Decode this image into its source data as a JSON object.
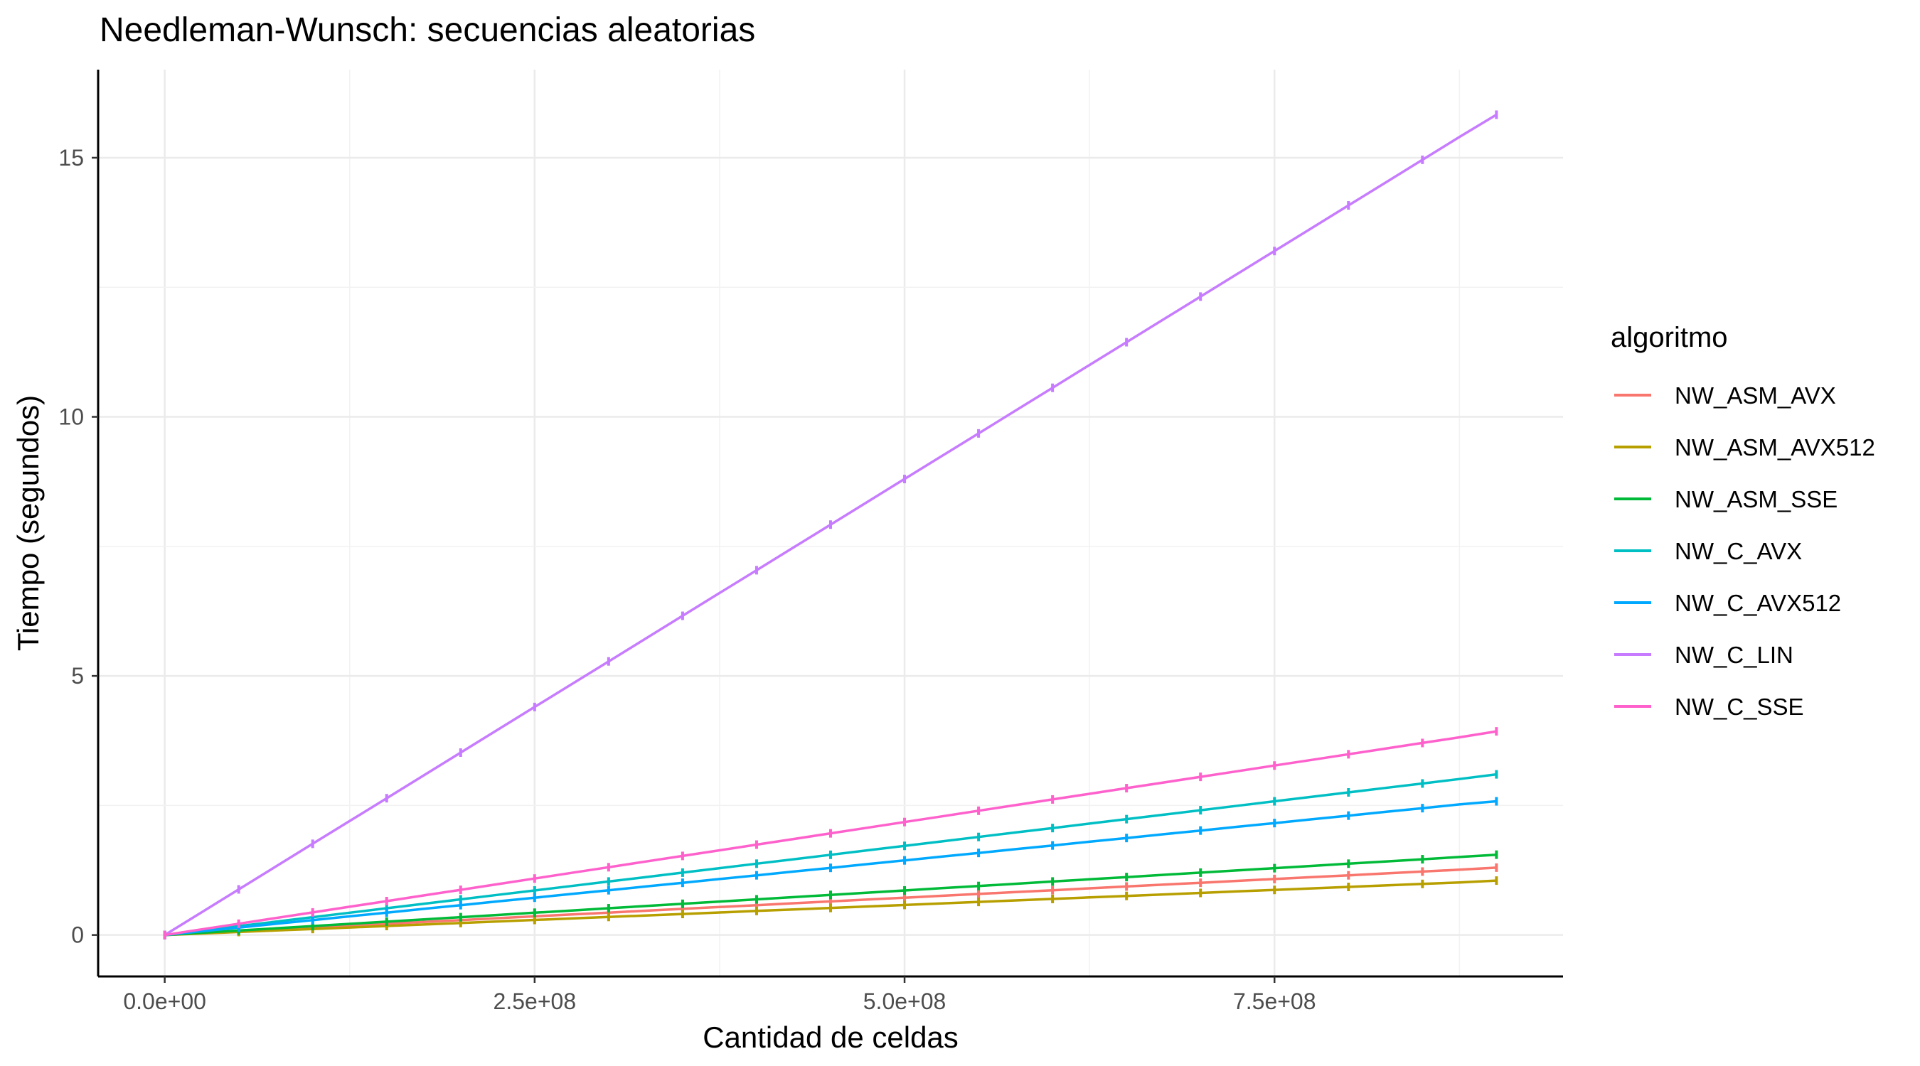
{
  "chart_data": {
    "type": "line",
    "title": "Needleman-Wunsch: secuencias aleatorias",
    "xlabel": "Cantidad de celdas",
    "ylabel": "Tiempo (segundos)",
    "xlim": [
      -45000000,
      945000000
    ],
    "ylim": [
      -0.8,
      16.7
    ],
    "x_ticks": [
      0,
      250000000,
      500000000,
      750000000
    ],
    "x_tick_labels": [
      "0.0e+00",
      "2.5e+08",
      "5.0e+08",
      "7.5e+08"
    ],
    "y_ticks": [
      0,
      5,
      10,
      15
    ],
    "y_tick_labels": [
      "0",
      "5",
      "10",
      "15"
    ],
    "grid": "major and minor, light grey",
    "legend": {
      "title": "algoritmo",
      "position": "right"
    },
    "x": [
      0,
      25000000,
      50000000,
      75000000,
      100000000,
      125000000,
      150000000,
      175000000,
      200000000,
      225000000,
      250000000,
      275000000,
      300000000,
      325000000,
      350000000,
      375000000,
      400000000,
      425000000,
      450000000,
      475000000,
      500000000,
      525000000,
      550000000,
      575000000,
      600000000,
      625000000,
      650000000,
      675000000,
      700000000,
      725000000,
      750000000,
      775000000,
      800000000,
      825000000,
      850000000,
      875000000,
      900000000
    ],
    "series": [
      {
        "name": "NW_ASM_AVX",
        "color": "#F8766D",
        "values": [
          0,
          0.036,
          0.072,
          0.108,
          0.144,
          0.18,
          0.216,
          0.252,
          0.288,
          0.324,
          0.36,
          0.396,
          0.432,
          0.468,
          0.504,
          0.54,
          0.576,
          0.612,
          0.648,
          0.684,
          0.72,
          0.756,
          0.792,
          0.828,
          0.864,
          0.9,
          0.936,
          0.972,
          1.008,
          1.044,
          1.08,
          1.116,
          1.152,
          1.188,
          1.224,
          1.26,
          1.3
        ]
      },
      {
        "name": "NW_ASM_AVX512",
        "color": "#B79F00",
        "values": [
          0,
          0.029,
          0.058,
          0.087,
          0.116,
          0.145,
          0.174,
          0.203,
          0.232,
          0.261,
          0.29,
          0.319,
          0.348,
          0.377,
          0.406,
          0.435,
          0.464,
          0.493,
          0.522,
          0.551,
          0.58,
          0.609,
          0.638,
          0.667,
          0.696,
          0.725,
          0.754,
          0.783,
          0.812,
          0.841,
          0.87,
          0.899,
          0.928,
          0.957,
          0.986,
          1.015,
          1.05
        ]
      },
      {
        "name": "NW_ASM_SSE",
        "color": "#00BA38",
        "values": [
          0,
          0.043,
          0.086,
          0.129,
          0.172,
          0.215,
          0.258,
          0.301,
          0.344,
          0.387,
          0.43,
          0.473,
          0.516,
          0.559,
          0.602,
          0.645,
          0.688,
          0.731,
          0.774,
          0.817,
          0.86,
          0.903,
          0.946,
          0.989,
          1.032,
          1.075,
          1.118,
          1.161,
          1.204,
          1.247,
          1.29,
          1.333,
          1.376,
          1.419,
          1.462,
          1.505,
          1.55
        ]
      },
      {
        "name": "NW_C_AVX",
        "color": "#00BFC4",
        "values": [
          0,
          0.086,
          0.172,
          0.258,
          0.344,
          0.43,
          0.516,
          0.602,
          0.688,
          0.774,
          0.86,
          0.946,
          1.032,
          1.118,
          1.204,
          1.29,
          1.376,
          1.462,
          1.548,
          1.634,
          1.72,
          1.806,
          1.892,
          1.978,
          2.064,
          2.15,
          2.236,
          2.322,
          2.408,
          2.494,
          2.58,
          2.666,
          2.752,
          2.838,
          2.924,
          3.01,
          3.1
        ]
      },
      {
        "name": "NW_C_AVX512",
        "color": "#00A9FF",
        "values": [
          0,
          0.072,
          0.144,
          0.216,
          0.288,
          0.36,
          0.432,
          0.504,
          0.576,
          0.648,
          0.72,
          0.792,
          0.864,
          0.936,
          1.008,
          1.08,
          1.152,
          1.224,
          1.296,
          1.368,
          1.44,
          1.512,
          1.584,
          1.656,
          1.728,
          1.8,
          1.872,
          1.944,
          2.016,
          2.088,
          2.16,
          2.232,
          2.304,
          2.376,
          2.448,
          2.52,
          2.58
        ]
      },
      {
        "name": "NW_C_LIN",
        "color": "#C77CFF",
        "values": [
          0,
          0.44,
          0.88,
          1.32,
          1.76,
          2.2,
          2.64,
          3.08,
          3.52,
          3.96,
          4.4,
          4.84,
          5.28,
          5.72,
          6.16,
          6.6,
          7.04,
          7.48,
          7.92,
          8.36,
          8.8,
          9.24,
          9.68,
          10.12,
          10.56,
          11.0,
          11.44,
          11.88,
          12.32,
          12.76,
          13.2,
          13.64,
          14.08,
          14.52,
          14.96,
          15.4,
          15.83
        ]
      },
      {
        "name": "NW_C_SSE",
        "color": "#FF61CC",
        "values": [
          0,
          0.109,
          0.218,
          0.327,
          0.436,
          0.545,
          0.654,
          0.763,
          0.872,
          0.981,
          1.09,
          1.199,
          1.308,
          1.417,
          1.526,
          1.635,
          1.744,
          1.853,
          1.962,
          2.071,
          2.18,
          2.289,
          2.398,
          2.507,
          2.616,
          2.725,
          2.834,
          2.943,
          3.052,
          3.161,
          3.27,
          3.379,
          3.488,
          3.597,
          3.706,
          3.815,
          3.93
        ]
      }
    ]
  }
}
